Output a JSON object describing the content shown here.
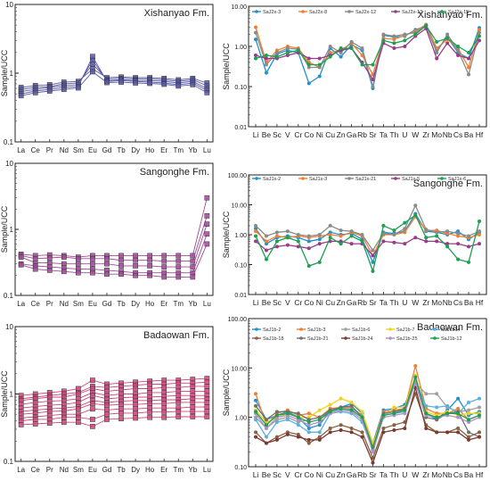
{
  "chart_data": [
    {
      "type": "line",
      "title": "Xishanyao Fm.",
      "ylabel": "Sample/UCC",
      "yscale": "log",
      "ylim": [
        0.1,
        10
      ],
      "ytick_labels": [
        "10",
        "1",
        "0.1"
      ],
      "categories": [
        "La",
        "Ce",
        "Pr",
        "Nd",
        "Sm",
        "Eu",
        "Gd",
        "Tb",
        "Dy",
        "Ho",
        "Er",
        "Tm",
        "Yb",
        "Lu"
      ],
      "series_style": {
        "color": "#5a5aa8",
        "marker": "square"
      },
      "series": [
        {
          "values": [
            0.62,
            0.66,
            0.68,
            0.74,
            0.76,
            1.15,
            0.86,
            0.88,
            0.86,
            0.86,
            0.84,
            0.8,
            0.84,
            0.72
          ]
        },
        {
          "values": [
            0.58,
            0.62,
            0.64,
            0.7,
            0.72,
            1.35,
            0.82,
            0.84,
            0.82,
            0.82,
            0.8,
            0.76,
            0.8,
            0.66
          ]
        },
        {
          "values": [
            0.54,
            0.58,
            0.62,
            0.66,
            0.68,
            1.55,
            0.78,
            0.8,
            0.78,
            0.78,
            0.76,
            0.72,
            0.76,
            0.6
          ]
        },
        {
          "values": [
            0.5,
            0.55,
            0.58,
            0.62,
            0.64,
            1.75,
            0.76,
            0.78,
            0.76,
            0.74,
            0.72,
            0.68,
            0.72,
            0.56
          ]
        },
        {
          "values": [
            0.47,
            0.52,
            0.55,
            0.58,
            0.61,
            1.05,
            0.73,
            0.74,
            0.72,
            0.71,
            0.69,
            0.65,
            0.68,
            0.52
          ]
        }
      ]
    },
    {
      "type": "line",
      "title": "Xishanyao Fm.",
      "ylabel": "Sample/UCC",
      "yscale": "log",
      "ylim": [
        0.01,
        10
      ],
      "ytick_labels": [
        "10.00",
        "1.00",
        "0.10",
        "0.01"
      ],
      "categories": [
        "Li",
        "Be",
        "Sc",
        "V",
        "Cr",
        "Co",
        "Ni",
        "Cu",
        "Zn",
        "Ga",
        "Rb",
        "Sr",
        "Ta",
        "Th",
        "U",
        "W",
        "Zr",
        "Mo",
        "Nb",
        "Cs",
        "Ba",
        "Hf"
      ],
      "series": [
        {
          "name": "SaJ2x-3",
          "color": "#1f8fd0",
          "values": [
            1.5,
            0.22,
            0.65,
            0.8,
            0.7,
            0.12,
            0.18,
            0.9,
            0.55,
            1.1,
            0.8,
            0.09,
            1.9,
            1.7,
            1.8,
            2.6,
            3.2,
            0.8,
            1.7,
            0.7,
            0.5,
            2.9
          ]
        },
        {
          "name": "SaJ2x-8",
          "color": "#f08030",
          "values": [
            3.0,
            0.4,
            0.8,
            1.0,
            0.9,
            0.4,
            0.3,
            0.7,
            0.8,
            1.2,
            0.6,
            0.2,
            1.6,
            1.5,
            1.9,
            2.4,
            3.5,
            0.9,
            1.5,
            0.9,
            0.3,
            2.6
          ]
        },
        {
          "name": "SaJ2x-12",
          "color": "#8a8a8a",
          "values": [
            2.2,
            0.35,
            0.7,
            0.9,
            0.85,
            0.3,
            0.3,
            1.0,
            0.7,
            1.3,
            0.9,
            0.1,
            2.0,
            1.8,
            2.0,
            2.2,
            3.4,
            0.7,
            2.0,
            0.8,
            0.2,
            2.2
          ]
        },
        {
          "name": "SaJ2x-13",
          "color": "#9a3a8a",
          "values": [
            0.6,
            0.5,
            0.5,
            0.6,
            0.7,
            0.5,
            0.5,
            0.6,
            0.8,
            0.9,
            0.4,
            0.15,
            1.2,
            0.9,
            1.0,
            1.8,
            2.8,
            0.5,
            1.2,
            0.6,
            0.5,
            1.4
          ]
        },
        {
          "name": "SaJ2x-15",
          "color": "#1aa050",
          "values": [
            0.5,
            0.6,
            0.55,
            0.7,
            0.8,
            0.35,
            0.35,
            0.55,
            0.9,
            0.9,
            0.35,
            0.35,
            1.4,
            1.2,
            1.4,
            2.0,
            3.3,
            1.3,
            1.6,
            1.0,
            0.7,
            1.8
          ]
        }
      ]
    },
    {
      "type": "line",
      "title": "Sangonghe Fm.",
      "ylabel": "Sample/UCC",
      "yscale": "log",
      "ylim": [
        0.1,
        10
      ],
      "ytick_labels": [
        "10",
        "1",
        "0.1"
      ],
      "categories": [
        "La",
        "Ce",
        "Pr",
        "Nd",
        "Sm",
        "Eu",
        "Gd",
        "Tb",
        "Dy",
        "Ho",
        "Er",
        "Tm",
        "Yb",
        "Lu"
      ],
      "series_style": {
        "color": "#a04a98",
        "marker": "square"
      },
      "series": [
        {
          "values": [
            0.42,
            0.4,
            0.41,
            0.4,
            0.38,
            0.4,
            0.4,
            0.4,
            0.4,
            0.4,
            0.4,
            0.4,
            0.4,
            3.0
          ]
        },
        {
          "values": [
            0.4,
            0.36,
            0.37,
            0.38,
            0.36,
            0.36,
            0.36,
            0.34,
            0.34,
            0.34,
            0.33,
            0.33,
            0.33,
            1.6
          ]
        },
        {
          "values": [
            0.38,
            0.31,
            0.31,
            0.3,
            0.3,
            0.3,
            0.3,
            0.28,
            0.28,
            0.28,
            0.27,
            0.27,
            0.27,
            1.2
          ]
        },
        {
          "values": [
            0.3,
            0.28,
            0.27,
            0.26,
            0.25,
            0.25,
            0.24,
            0.23,
            0.22,
            0.22,
            0.22,
            0.22,
            0.22,
            0.85
          ]
        },
        {
          "values": [
            0.29,
            0.25,
            0.24,
            0.23,
            0.22,
            0.22,
            0.21,
            0.21,
            0.2,
            0.2,
            0.19,
            0.19,
            0.19,
            0.6
          ]
        }
      ]
    },
    {
      "type": "line",
      "title": "Sangonghe Fm.",
      "ylabel": "Sample/UCC",
      "yscale": "log",
      "ylim": [
        0.01,
        100
      ],
      "ytick_labels": [
        "100.00",
        "10.00",
        "1.00",
        "0.10",
        "0.01"
      ],
      "categories": [
        "Li",
        "Be",
        "Sc",
        "V",
        "Cr",
        "Co",
        "Ni",
        "Cu",
        "Zn",
        "Ga",
        "Rb",
        "Sr",
        "Ta",
        "Th",
        "U",
        "W",
        "Zr",
        "Mo",
        "Nb",
        "Cs",
        "Ba",
        "Hf"
      ],
      "series": [
        {
          "name": "SaJ1s-2",
          "color": "#1f8fd0",
          "values": [
            1.6,
            0.5,
            0.8,
            0.9,
            0.8,
            0.6,
            0.7,
            1.2,
            1.0,
            1.1,
            0.7,
            0.12,
            1.2,
            1.1,
            1.3,
            5.0,
            1.3,
            1.2,
            1.0,
            1.3,
            0.7,
            1.2
          ]
        },
        {
          "name": "SaJ1s-3",
          "color": "#f08030",
          "values": [
            1.3,
            0.6,
            0.9,
            0.8,
            0.9,
            0.8,
            0.9,
            1.0,
            0.9,
            1.2,
            0.9,
            0.2,
            1.0,
            1.0,
            1.2,
            4.0,
            1.4,
            1.4,
            1.1,
            0.9,
            0.8,
            1.0
          ]
        },
        {
          "name": "SaJ1s-21",
          "color": "#8a8a8a",
          "values": [
            2.0,
            0.9,
            1.2,
            1.3,
            1.0,
            0.9,
            1.0,
            2.0,
            1.4,
            1.3,
            1.0,
            0.3,
            1.1,
            1.0,
            1.6,
            9.5,
            1.5,
            1.2,
            1.3,
            1.1,
            0.9,
            1.3
          ]
        },
        {
          "name": "SaJ1s-5",
          "color": "#9a3a8a",
          "values": [
            0.6,
            0.3,
            0.4,
            0.45,
            0.4,
            0.35,
            0.5,
            0.6,
            0.6,
            0.5,
            0.5,
            0.2,
            0.6,
            0.55,
            0.5,
            0.8,
            0.6,
            0.6,
            0.5,
            0.5,
            0.4,
            0.5
          ]
        },
        {
          "name": "SaJ1s-6",
          "color": "#1aa050",
          "values": [
            0.9,
            0.15,
            0.6,
            0.8,
            0.6,
            0.09,
            0.12,
            0.8,
            0.5,
            0.9,
            0.6,
            0.06,
            2.0,
            1.4,
            2.5,
            4.5,
            0.8,
            0.9,
            0.4,
            0.15,
            0.12,
            2.8
          ]
        }
      ]
    },
    {
      "type": "line",
      "title": "Badaowan Fm.",
      "ylabel": "Sample/UCC",
      "yscale": "log",
      "ylim": [
        0.1,
        10
      ],
      "ytick_labels": [
        "10",
        "1",
        "0.1"
      ],
      "categories": [
        "La",
        "Ce",
        "Pr",
        "Nd",
        "Sm",
        "Eu",
        "Gd",
        "Tb",
        "Dy",
        "Ho",
        "Er",
        "Tm",
        "Yb",
        "Lu"
      ],
      "series_style": {
        "color": "#d0457a",
        "marker": "square"
      },
      "series": [
        {
          "values": [
            0.95,
            1.0,
            1.05,
            1.1,
            1.2,
            1.6,
            1.4,
            1.45,
            1.5,
            1.55,
            1.6,
            1.6,
            1.65,
            1.7
          ]
        },
        {
          "values": [
            0.85,
            0.9,
            0.95,
            1.0,
            1.05,
            1.3,
            1.25,
            1.3,
            1.35,
            1.4,
            1.4,
            1.45,
            1.45,
            1.5
          ]
        },
        {
          "values": [
            0.8,
            0.85,
            0.9,
            0.9,
            1.0,
            1.2,
            1.1,
            1.15,
            1.2,
            1.2,
            1.25,
            1.25,
            1.3,
            1.3
          ]
        },
        {
          "values": [
            0.7,
            0.75,
            0.78,
            0.8,
            0.85,
            1.05,
            0.95,
            1.0,
            1.0,
            1.05,
            1.05,
            1.1,
            1.1,
            1.1
          ]
        },
        {
          "values": [
            0.62,
            0.65,
            0.68,
            0.7,
            0.75,
            0.95,
            0.85,
            0.88,
            0.9,
            0.9,
            0.92,
            0.95,
            0.95,
            0.95
          ]
        },
        {
          "values": [
            0.55,
            0.58,
            0.6,
            0.62,
            0.65,
            0.8,
            0.75,
            0.78,
            0.8,
            0.8,
            0.82,
            0.82,
            0.85,
            0.85
          ]
        },
        {
          "values": [
            0.5,
            0.52,
            0.55,
            0.56,
            0.6,
            0.72,
            0.68,
            0.7,
            0.7,
            0.72,
            0.72,
            0.75,
            0.75,
            0.75
          ]
        },
        {
          "values": [
            0.44,
            0.46,
            0.48,
            0.5,
            0.5,
            0.6,
            0.58,
            0.6,
            0.6,
            0.62,
            0.62,
            0.62,
            0.64,
            0.64
          ]
        },
        {
          "values": [
            0.4,
            0.42,
            0.42,
            0.45,
            0.45,
            0.42,
            0.5,
            0.52,
            0.52,
            0.54,
            0.54,
            0.55,
            0.55,
            0.55
          ]
        },
        {
          "values": [
            0.35,
            0.36,
            0.37,
            0.38,
            0.38,
            0.33,
            0.42,
            0.43,
            0.44,
            0.45,
            0.45,
            0.46,
            0.46,
            0.46
          ]
        }
      ]
    },
    {
      "type": "line",
      "title": "Badaowan Fm.",
      "ylabel": "Sample/UCC",
      "yscale": "log",
      "ylim": [
        0.1,
        100
      ],
      "ytick_labels": [
        "100.00",
        "10.00",
        "1.00",
        "0.10"
      ],
      "categories": [
        "Li",
        "Be",
        "Sc",
        "V",
        "Cr",
        "Co",
        "Ni",
        "Cu",
        "Zn",
        "Ga",
        "Rb",
        "Sr",
        "Ta",
        "Th",
        "U",
        "W",
        "Zr",
        "Mo",
        "Nb",
        "Cs",
        "Ba",
        "Hf"
      ],
      "series": [
        {
          "name": "SaJ1b-2",
          "color": "#1f8fd0",
          "values": [
            2.2,
            0.9,
            1.1,
            1.3,
            1.0,
            0.6,
            0.7,
            1.4,
            1.6,
            1.9,
            1.2,
            0.3,
            1.4,
            1.5,
            1.8,
            6.0,
            1.2,
            0.9,
            1.4,
            2.4,
            1.1,
            1.3
          ]
        },
        {
          "name": "SaJ1b-3",
          "color": "#f08030",
          "values": [
            3.0,
            0.7,
            1.2,
            1.4,
            1.1,
            1.2,
            1.0,
            1.5,
            1.6,
            1.6,
            1.1,
            0.28,
            1.3,
            1.4,
            1.5,
            11.0,
            1.5,
            1.2,
            1.2,
            1.5,
            0.9,
            1.1
          ]
        },
        {
          "name": "SaJ1b-6",
          "color": "#a0a0a0",
          "values": [
            1.0,
            0.6,
            0.9,
            1.0,
            0.8,
            0.9,
            1.0,
            1.3,
            1.5,
            1.5,
            1.1,
            0.25,
            1.2,
            1.3,
            1.4,
            5.0,
            3.0,
            3.0,
            1.6,
            1.3,
            1.4,
            1.6
          ]
        },
        {
          "name": "SaJ1b-7",
          "color": "#f2d21a",
          "values": [
            1.4,
            0.8,
            1.0,
            1.2,
            1.0,
            1.0,
            1.4,
            1.8,
            2.4,
            2.0,
            1.3,
            0.3,
            1.0,
            1.6,
            1.6,
            7.0,
            1.3,
            1.1,
            1.3,
            1.1,
            1.2,
            1.2
          ]
        },
        {
          "name": "SaJ1b14",
          "color": "#5ab0e0",
          "values": [
            0.9,
            0.4,
            0.8,
            0.9,
            0.7,
            0.5,
            0.5,
            1.2,
            1.3,
            1.2,
            0.8,
            0.22,
            1.1,
            1.2,
            1.3,
            5.5,
            1.7,
            1.6,
            1.7,
            1.2,
            2.0,
            2.4
          ]
        },
        {
          "name": "SaJ1b-18",
          "color": "#8a6040",
          "values": [
            0.5,
            0.3,
            0.4,
            0.5,
            0.45,
            0.3,
            0.4,
            0.6,
            0.7,
            0.6,
            0.5,
            0.15,
            0.6,
            0.7,
            0.8,
            3.0,
            0.7,
            0.5,
            0.5,
            0.6,
            0.4,
            0.5
          ]
        },
        {
          "name": "SaJ1b-21",
          "color": "#707070",
          "values": [
            1.7,
            0.9,
            1.3,
            1.3,
            1.2,
            0.9,
            1.0,
            1.4,
            1.6,
            1.7,
            1.0,
            0.22,
            1.2,
            1.3,
            1.5,
            5.0,
            1.0,
            0.9,
            1.2,
            1.3,
            0.5,
            0.4
          ]
        },
        {
          "name": "SaJ1b-24",
          "color": "#7a3a30",
          "values": [
            0.4,
            0.3,
            0.35,
            0.45,
            0.4,
            0.35,
            0.35,
            0.5,
            0.55,
            0.5,
            0.4,
            0.12,
            0.5,
            0.55,
            0.6,
            4.0,
            0.6,
            0.5,
            0.5,
            0.5,
            0.35,
            0.4
          ]
        },
        {
          "name": "SaJ1b-25",
          "color": "#b090c8",
          "values": [
            1.2,
            0.6,
            1.0,
            1.1,
            0.9,
            0.7,
            0.8,
            1.2,
            1.4,
            1.3,
            0.9,
            0.2,
            1.0,
            1.1,
            1.2,
            5.0,
            1.1,
            1.0,
            1.1,
            1.0,
            0.8,
            1.0
          ]
        },
        {
          "name": "SaJ1b-12",
          "color": "#1aa050",
          "values": [
            1.3,
            0.7,
            1.1,
            1.2,
            1.0,
            0.8,
            0.9,
            1.3,
            1.5,
            1.4,
            1.0,
            0.25,
            1.1,
            1.2,
            1.4,
            6.5,
            1.2,
            1.0,
            1.2,
            1.2,
            0.9,
            1.1
          ]
        }
      ]
    }
  ]
}
